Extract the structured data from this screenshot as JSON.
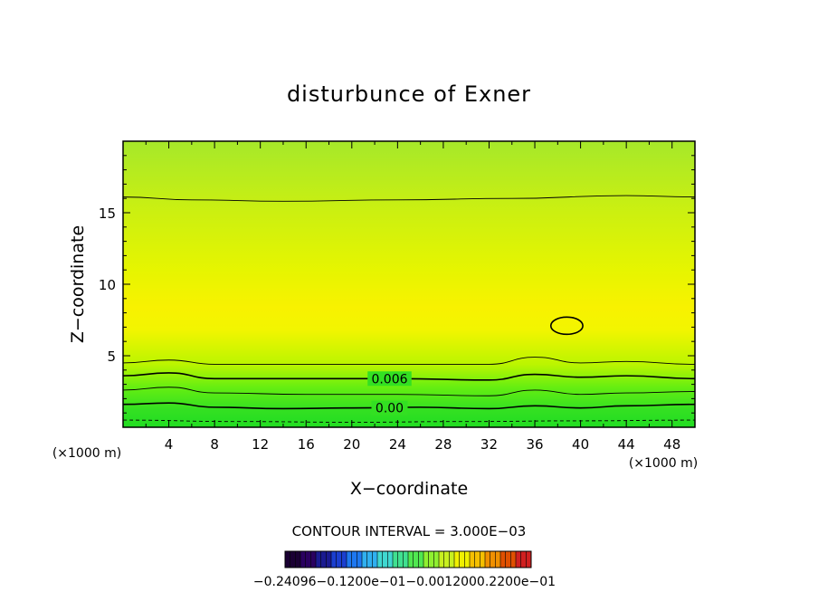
{
  "chart_data": {
    "type": "contour",
    "title": "disturbunce of Exner",
    "xlabel": "X−coordinate",
    "ylabel": "Z−coordinate",
    "x_unit": "(×1000 m)",
    "xlim": [
      0,
      50
    ],
    "ylim": [
      0,
      20
    ],
    "x_ticks": [
      "4",
      "8",
      "12",
      "16",
      "20",
      "24",
      "28",
      "32",
      "36",
      "40",
      "44",
      "48"
    ],
    "y_ticks": [
      "5",
      "10",
      "15"
    ],
    "contour_interval_label": "CONTOUR INTERVAL = 3.000E−03",
    "contour_labels": [
      {
        "text": "0.006",
        "level": 0.006
      },
      {
        "text": "0.00",
        "level": 0.0
      }
    ],
    "contour_lines": [
      {
        "level": "0.00",
        "dashed": true,
        "points": [
          [
            0,
            0.5
          ],
          [
            10,
            0.4
          ],
          [
            20,
            0.35
          ],
          [
            30,
            0.4
          ],
          [
            40,
            0.45
          ],
          [
            50,
            0.5
          ]
        ]
      },
      {
        "level": "0.00",
        "points": [
          [
            0,
            1.6
          ],
          [
            4,
            1.7
          ],
          [
            8,
            1.4
          ],
          [
            14,
            1.3
          ],
          [
            20,
            1.35
          ],
          [
            26,
            1.4
          ],
          [
            32,
            1.3
          ],
          [
            36,
            1.5
          ],
          [
            40,
            1.35
          ],
          [
            44,
            1.5
          ],
          [
            50,
            1.6
          ]
        ]
      },
      {
        "level": "0.003",
        "points": [
          [
            0,
            2.6
          ],
          [
            4,
            2.8
          ],
          [
            8,
            2.4
          ],
          [
            16,
            2.3
          ],
          [
            24,
            2.3
          ],
          [
            32,
            2.2
          ],
          [
            36,
            2.6
          ],
          [
            40,
            2.3
          ],
          [
            44,
            2.4
          ],
          [
            50,
            2.5
          ]
        ]
      },
      {
        "level": "0.006",
        "points": [
          [
            0,
            3.6
          ],
          [
            4,
            3.8
          ],
          [
            8,
            3.4
          ],
          [
            16,
            3.4
          ],
          [
            24,
            3.4
          ],
          [
            32,
            3.3
          ],
          [
            36,
            3.7
          ],
          [
            40,
            3.5
          ],
          [
            44,
            3.6
          ],
          [
            50,
            3.4
          ]
        ]
      },
      {
        "level": "0.009",
        "points": [
          [
            0,
            4.5
          ],
          [
            4,
            4.7
          ],
          [
            8,
            4.4
          ],
          [
            16,
            4.4
          ],
          [
            24,
            4.4
          ],
          [
            32,
            4.4
          ],
          [
            36,
            4.9
          ],
          [
            40,
            4.5
          ],
          [
            44,
            4.6
          ],
          [
            50,
            4.4
          ]
        ]
      },
      {
        "level": "0.009",
        "points": [
          [
            0,
            16.1
          ],
          [
            6,
            15.9
          ],
          [
            14,
            15.8
          ],
          [
            24,
            15.9
          ],
          [
            34,
            16.0
          ],
          [
            44,
            16.2
          ],
          [
            50,
            16.1
          ]
        ]
      }
    ],
    "closed_contour": {
      "level": "0.015",
      "center": [
        38.8,
        7.1
      ],
      "rx": 1.4,
      "ry": 0.6
    },
    "color_scale": {
      "labels_text": "−0.24096−0.1200e−01−0.0012000.2200e−01",
      "colors": [
        "#1a0033",
        "#2a0060",
        "#1a1a90",
        "#1b3fd0",
        "#1e78f0",
        "#30b0f0",
        "#40d8d0",
        "#40e090",
        "#50e850",
        "#8ff030",
        "#c8f020",
        "#f0f000",
        "#f5c000",
        "#f09000",
        "#e05000",
        "#d02020"
      ]
    }
  }
}
